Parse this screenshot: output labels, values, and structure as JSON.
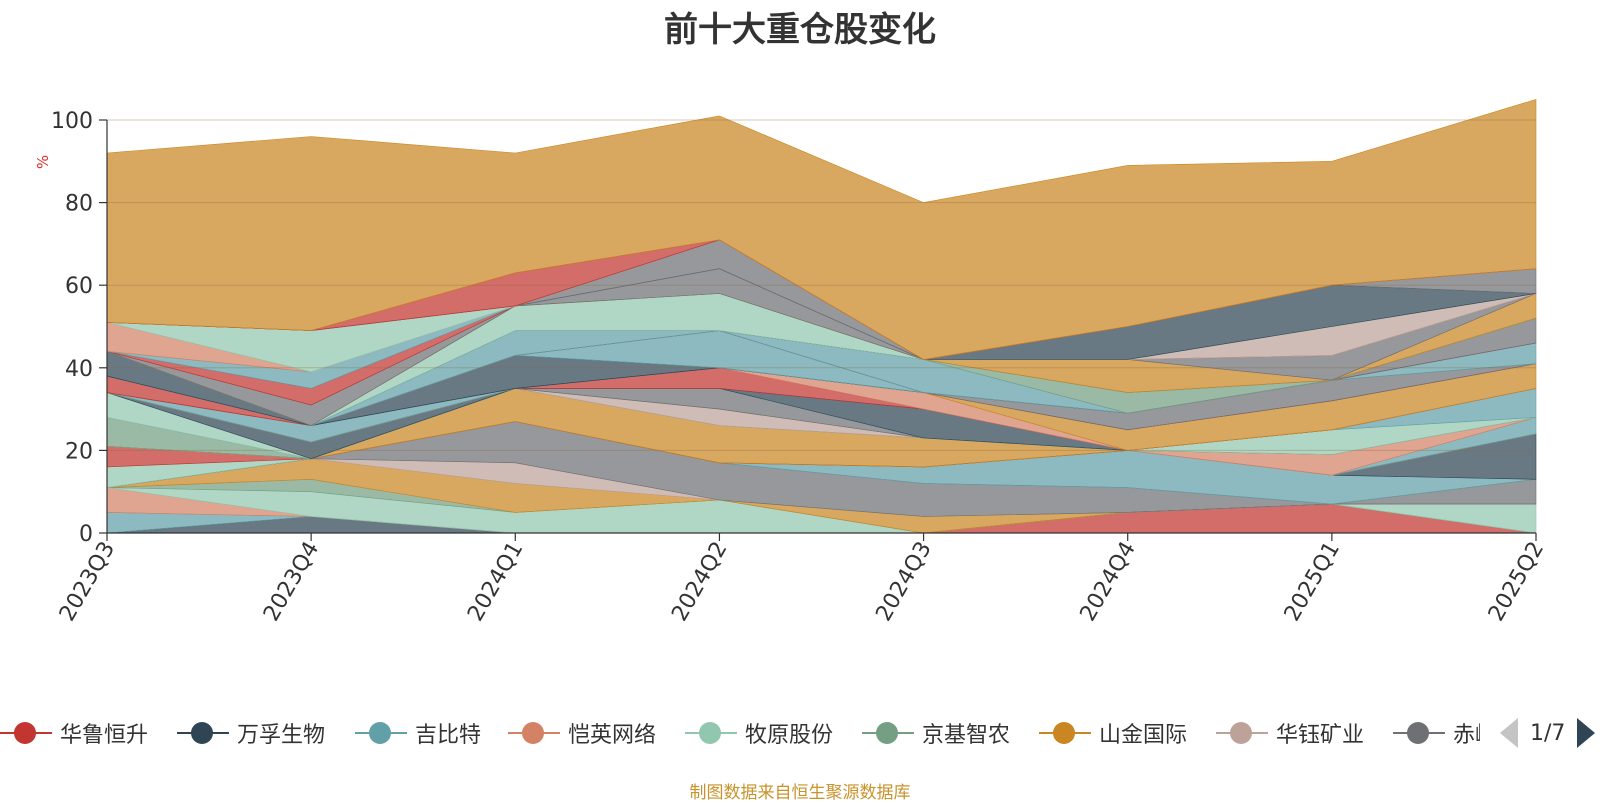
{
  "chart_data": {
    "type": "area",
    "title": "前十大重仓股变化",
    "ylabel": "%",
    "ylim": [
      0,
      100
    ],
    "yticks": [
      0,
      20,
      40,
      60,
      80,
      100
    ],
    "grid": true,
    "stacking": "theme-river (100% band)",
    "categories": [
      "2023Q3",
      "2023Q4",
      "2024Q1",
      "2024Q2",
      "2024Q3",
      "2024Q4",
      "2025Q1",
      "2025Q2"
    ],
    "series": [
      {
        "name": "华鲁恒升",
        "color": "#c23531",
        "values": [
          0,
          0,
          0,
          0,
          0,
          5,
          7,
          0
        ]
      },
      {
        "name": "万孚生物",
        "color": "#2f4554",
        "values": [
          0,
          4,
          0,
          0,
          0,
          0,
          0,
          0
        ]
      },
      {
        "name": "吉比特",
        "color": "#61a0a8",
        "values": [
          5,
          0,
          0,
          0,
          0,
          0,
          0,
          0
        ]
      },
      {
        "name": "恺英网络",
        "color": "#d48265",
        "values": [
          6,
          0,
          0,
          0,
          0,
          0,
          0,
          0
        ]
      },
      {
        "name": "牧原股份",
        "color": "#91c7ae",
        "values": [
          0,
          6,
          5,
          8,
          0,
          0,
          0,
          7
        ]
      },
      {
        "name": "京基智农",
        "color": "#749f83",
        "values": [
          0,
          3,
          0,
          0,
          0,
          0,
          0,
          0
        ]
      },
      {
        "name": "山金国际",
        "color": "#ca8622",
        "values": [
          0,
          5,
          7,
          0,
          4,
          0,
          0,
          0
        ]
      },
      {
        "name": "华钰矿业",
        "color": "#bda29a",
        "values": [
          0,
          0,
          5,
          0,
          0,
          0,
          0,
          0
        ]
      },
      {
        "name": "赤峰黄金",
        "color": "#6e7074",
        "values": [
          0,
          0,
          10,
          9,
          8,
          6,
          0,
          6
        ]
      },
      {
        "name": "吉比特",
        "color": "#61a0a8",
        "values": [
          0,
          0,
          0,
          0,
          4,
          9,
          7,
          0
        ]
      },
      {
        "name": "万孚生物",
        "color": "#2f4554",
        "values": [
          0,
          0,
          0,
          0,
          0,
          0,
          0,
          11
        ]
      },
      {
        "name": "牧原股份",
        "color": "#91c7ae",
        "values": [
          5,
          0,
          0,
          0,
          0,
          0,
          0,
          0
        ]
      },
      {
        "name": "华鲁恒升",
        "color": "#c23531",
        "values": [
          5,
          0,
          0,
          0,
          0,
          0,
          0,
          0
        ]
      },
      {
        "name": "山金国际",
        "color": "#ca8622",
        "values": [
          0,
          0,
          8,
          9,
          7,
          0,
          0,
          0
        ]
      },
      {
        "name": "吉比特",
        "color": "#61a0a8",
        "values": [
          0,
          0,
          0,
          0,
          0,
          0,
          0,
          4
        ]
      },
      {
        "name": "华钰矿业",
        "color": "#bda29a",
        "values": [
          0,
          0,
          0,
          4,
          0,
          0,
          0,
          0
        ]
      },
      {
        "name": "恺英网络",
        "color": "#d48265",
        "values": [
          0,
          0,
          0,
          0,
          0,
          0,
          5,
          0
        ]
      },
      {
        "name": "京基智农",
        "color": "#749f83",
        "values": [
          7,
          0,
          0,
          0,
          0,
          0,
          0,
          0
        ]
      },
      {
        "name": "赤峰黄金",
        "color": "#6e7074",
        "values": [
          0,
          0,
          0,
          5,
          0,
          0,
          0,
          0
        ]
      },
      {
        "name": "牧原股份",
        "color": "#91c7ae",
        "values": [
          0,
          0,
          0,
          0,
          0,
          0,
          6,
          0
        ]
      },
      {
        "name": "吉比特",
        "color": "#61a0a8",
        "values": [
          0,
          0,
          0,
          0,
          0,
          0,
          0,
          7
        ]
      },
      {
        "name": "牧原股份",
        "color": "#91c7ae",
        "values": [
          6,
          0,
          0,
          0,
          0,
          0,
          0,
          0
        ]
      },
      {
        "name": "万孚生物",
        "color": "#2f4554",
        "values": [
          0,
          4,
          0,
          0,
          7,
          0,
          0,
          0
        ]
      },
      {
        "name": "华鲁恒升",
        "color": "#c23531",
        "values": [
          0,
          0,
          0,
          5,
          0,
          0,
          0,
          0
        ]
      },
      {
        "name": "恺英网络",
        "color": "#d48265",
        "values": [
          0,
          0,
          0,
          0,
          4,
          0,
          0,
          0
        ]
      },
      {
        "name": "山金国际",
        "color": "#ca8622",
        "values": [
          0,
          0,
          0,
          0,
          0,
          5,
          7,
          6
        ]
      },
      {
        "name": "吉比特",
        "color": "#61a0a8",
        "values": [
          0,
          4,
          0,
          0,
          0,
          0,
          0,
          0
        ]
      },
      {
        "name": "华鲁恒升",
        "color": "#c23531",
        "values": [
          0,
          0,
          0,
          0,
          0,
          0,
          0,
          0
        ]
      },
      {
        "name": "赤峰黄金",
        "color": "#6e7074",
        "values": [
          0,
          0,
          0,
          0,
          0,
          4,
          5,
          0
        ]
      },
      {
        "name": "吉比特",
        "color": "#61a0a8",
        "values": [
          0,
          0,
          0,
          0,
          0,
          0,
          0,
          5
        ]
      },
      {
        "name": "万孚生物",
        "color": "#2f4554",
        "values": [
          0,
          0,
          8,
          0,
          0,
          0,
          0,
          0
        ]
      },
      {
        "name": "吉比特",
        "color": "#61a0a8",
        "values": [
          0,
          0,
          0,
          9,
          0,
          0,
          0,
          0
        ]
      },
      {
        "name": "恺英网络",
        "color": "#d48265",
        "values": [
          0,
          0,
          0,
          0,
          0,
          0,
          0,
          0
        ]
      },
      {
        "name": "华鲁恒升",
        "color": "#c23531",
        "values": [
          4,
          0,
          0,
          0,
          0,
          0,
          0,
          0
        ]
      },
      {
        "name": "赤峰黄金",
        "color": "#6e7074",
        "values": [
          0,
          0,
          0,
          0,
          0,
          0,
          0,
          6
        ]
      },
      {
        "name": "吉比特",
        "color": "#61a0a8",
        "values": [
          0,
          0,
          6,
          0,
          8,
          0,
          0,
          0
        ]
      },
      {
        "name": "京基智农",
        "color": "#749f83",
        "values": [
          0,
          0,
          0,
          0,
          0,
          5,
          0,
          0
        ]
      },
      {
        "name": "万孚生物",
        "color": "#2f4554",
        "values": [
          6,
          0,
          0,
          0,
          0,
          0,
          0,
          0
        ]
      },
      {
        "name": "牧原股份",
        "color": "#91c7ae",
        "values": [
          0,
          0,
          6,
          9,
          0,
          0,
          0,
          0
        ]
      },
      {
        "name": "山金国际",
        "color": "#ca8622",
        "values": [
          0,
          0,
          0,
          0,
          0,
          8,
          0,
          6
        ]
      },
      {
        "name": "赤峰黄金",
        "color": "#6e7074",
        "values": [
          0,
          5,
          0,
          6,
          0,
          0,
          6,
          0
        ]
      },
      {
        "name": "华鲁恒升",
        "color": "#c23531",
        "values": [
          0,
          4,
          0,
          0,
          0,
          0,
          0,
          0
        ]
      },
      {
        "name": "吉比特",
        "color": "#61a0a8",
        "values": [
          0,
          4,
          0,
          0,
          0,
          0,
          0,
          0
        ]
      },
      {
        "name": "恺英网络",
        "color": "#d48265",
        "values": [
          7,
          0,
          0,
          0,
          0,
          0,
          0,
          0
        ]
      },
      {
        "name": "华钰矿业",
        "color": "#bda29a",
        "values": [
          0,
          0,
          0,
          0,
          0,
          0,
          7,
          0
        ]
      },
      {
        "name": "牧原股份",
        "color": "#91c7ae",
        "values": [
          0,
          10,
          0,
          0,
          0,
          0,
          0,
          0
        ]
      },
      {
        "name": "万孚生物",
        "color": "#2f4554",
        "values": [
          0,
          0,
          0,
          0,
          0,
          8,
          10,
          0
        ]
      },
      {
        "name": "赤峰黄金",
        "color": "#6e7074",
        "values": [
          0,
          0,
          0,
          7,
          0,
          0,
          0,
          6
        ]
      },
      {
        "name": "恺英网络",
        "color": "#d48265",
        "values": [
          0,
          0,
          0,
          0,
          0,
          0,
          0,
          0
        ]
      },
      {
        "name": "华鲁恒升",
        "color": "#c23531",
        "values": [
          0,
          0,
          8,
          0,
          0,
          0,
          0,
          0
        ]
      },
      {
        "name": "山金国际",
        "color": "#ca8622",
        "values": [
          41,
          47,
          29,
          30,
          38,
          39,
          30,
          41
        ]
      }
    ]
  },
  "legend": {
    "items": [
      {
        "name": "华鲁恒升",
        "color": "#c23531"
      },
      {
        "name": "万孚生物",
        "color": "#2f4554"
      },
      {
        "name": "吉比特",
        "color": "#61a0a8"
      },
      {
        "name": "恺英网络",
        "color": "#d48265"
      },
      {
        "name": "牧原股份",
        "color": "#91c7ae"
      },
      {
        "name": "京基智农",
        "color": "#749f83"
      },
      {
        "name": "山金国际",
        "color": "#ca8622"
      },
      {
        "name": "华钰矿业",
        "color": "#bda29a"
      },
      {
        "name": "赤峰黄金",
        "color": "#6e7074"
      }
    ],
    "page_text": "1/7"
  },
  "footer": {
    "source_note": "制图数据来自恒生聚源数据库"
  }
}
